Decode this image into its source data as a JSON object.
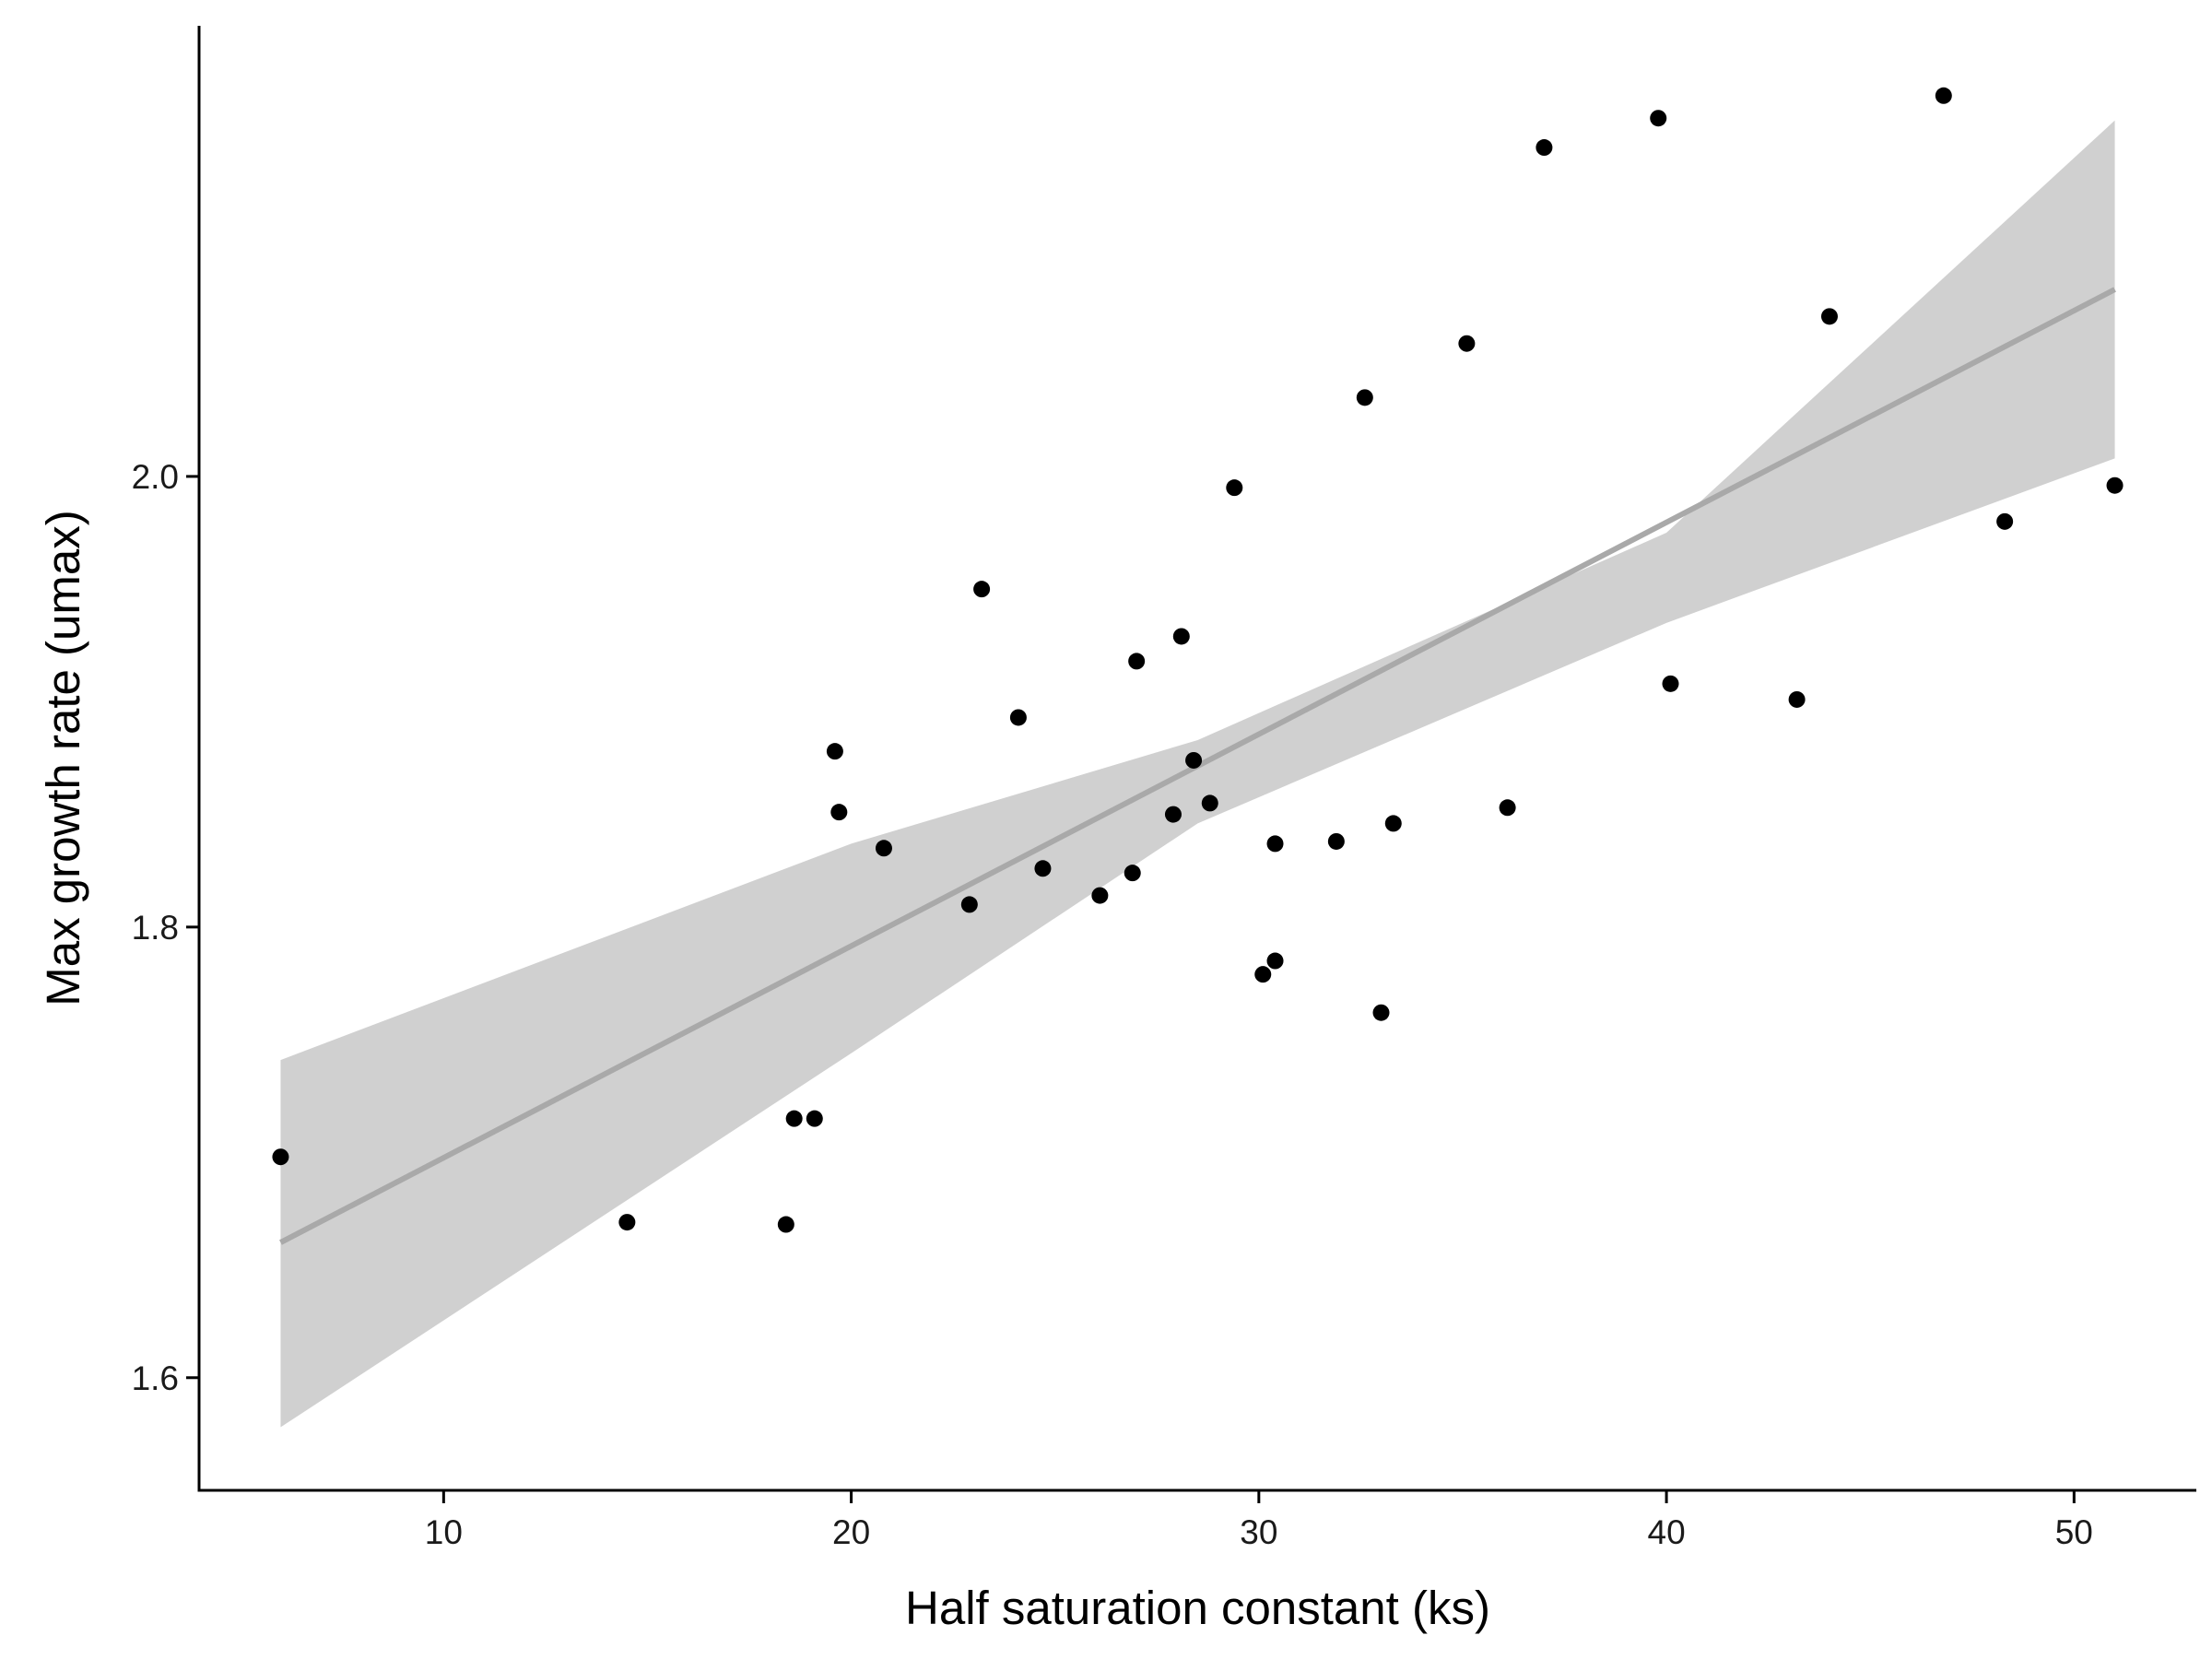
{
  "chart_data": {
    "type": "scatter",
    "title": "",
    "xlabel": "Half saturation constant (ks)",
    "ylabel": "Max growth rate (umax)",
    "xlim": [
      4,
      53
    ],
    "ylim": [
      1.55,
      2.2
    ],
    "xticks": [
      10,
      20,
      30,
      40,
      50
    ],
    "yticks": [
      1.6,
      1.8,
      2.0
    ],
    "xtick_labels": [
      "10",
      "20",
      "30",
      "40",
      "50"
    ],
    "ytick_labels": [
      "1.6",
      "1.8",
      "2.0"
    ],
    "grid": false,
    "legend": "none",
    "colors": {
      "points": "#000000",
      "fit_line": "#a9a9a9",
      "confidence_band": "#d0d0d0",
      "axis": "#000000"
    },
    "points": [
      {
        "x": 6.0,
        "y": 1.698
      },
      {
        "x": 14.5,
        "y": 1.669
      },
      {
        "x": 18.4,
        "y": 1.668
      },
      {
        "x": 18.6,
        "y": 1.715
      },
      {
        "x": 19.1,
        "y": 1.715
      },
      {
        "x": 19.6,
        "y": 1.878
      },
      {
        "x": 19.7,
        "y": 1.851
      },
      {
        "x": 20.8,
        "y": 1.835
      },
      {
        "x": 22.9,
        "y": 1.81
      },
      {
        "x": 23.2,
        "y": 1.95
      },
      {
        "x": 24.1,
        "y": 1.893
      },
      {
        "x": 24.7,
        "y": 1.826
      },
      {
        "x": 26.1,
        "y": 1.814
      },
      {
        "x": 26.9,
        "y": 1.824
      },
      {
        "x": 27.0,
        "y": 1.918
      },
      {
        "x": 27.9,
        "y": 1.85
      },
      {
        "x": 28.1,
        "y": 1.929
      },
      {
        "x": 28.4,
        "y": 1.874
      },
      {
        "x": 28.8,
        "y": 1.855
      },
      {
        "x": 29.4,
        "y": 1.995
      },
      {
        "x": 30.1,
        "y": 1.779
      },
      {
        "x": 30.4,
        "y": 1.785
      },
      {
        "x": 30.4,
        "y": 1.837
      },
      {
        "x": 31.9,
        "y": 1.838
      },
      {
        "x": 32.6,
        "y": 2.035
      },
      {
        "x": 33.0,
        "y": 1.762
      },
      {
        "x": 33.3,
        "y": 1.846
      },
      {
        "x": 35.1,
        "y": 2.059
      },
      {
        "x": 36.1,
        "y": 1.853
      },
      {
        "x": 37.0,
        "y": 2.146
      },
      {
        "x": 39.8,
        "y": 2.159
      },
      {
        "x": 40.1,
        "y": 1.908
      },
      {
        "x": 43.2,
        "y": 1.901
      },
      {
        "x": 44.0,
        "y": 2.071
      },
      {
        "x": 46.8,
        "y": 2.169
      },
      {
        "x": 48.3,
        "y": 1.98
      },
      {
        "x": 51.0,
        "y": 1.996
      }
    ],
    "fit": {
      "type": "linear",
      "x": [
        6.0,
        51.0
      ],
      "y": [
        1.66,
        2.083
      ]
    },
    "confidence_band": {
      "x": [
        6.0,
        20.0,
        28.5,
        40.0,
        51.0
      ],
      "lower": [
        1.578,
        1.744,
        1.846,
        1.935,
        2.008
      ],
      "upper": [
        1.741,
        1.837,
        1.883,
        1.975,
        2.158
      ]
    }
  }
}
